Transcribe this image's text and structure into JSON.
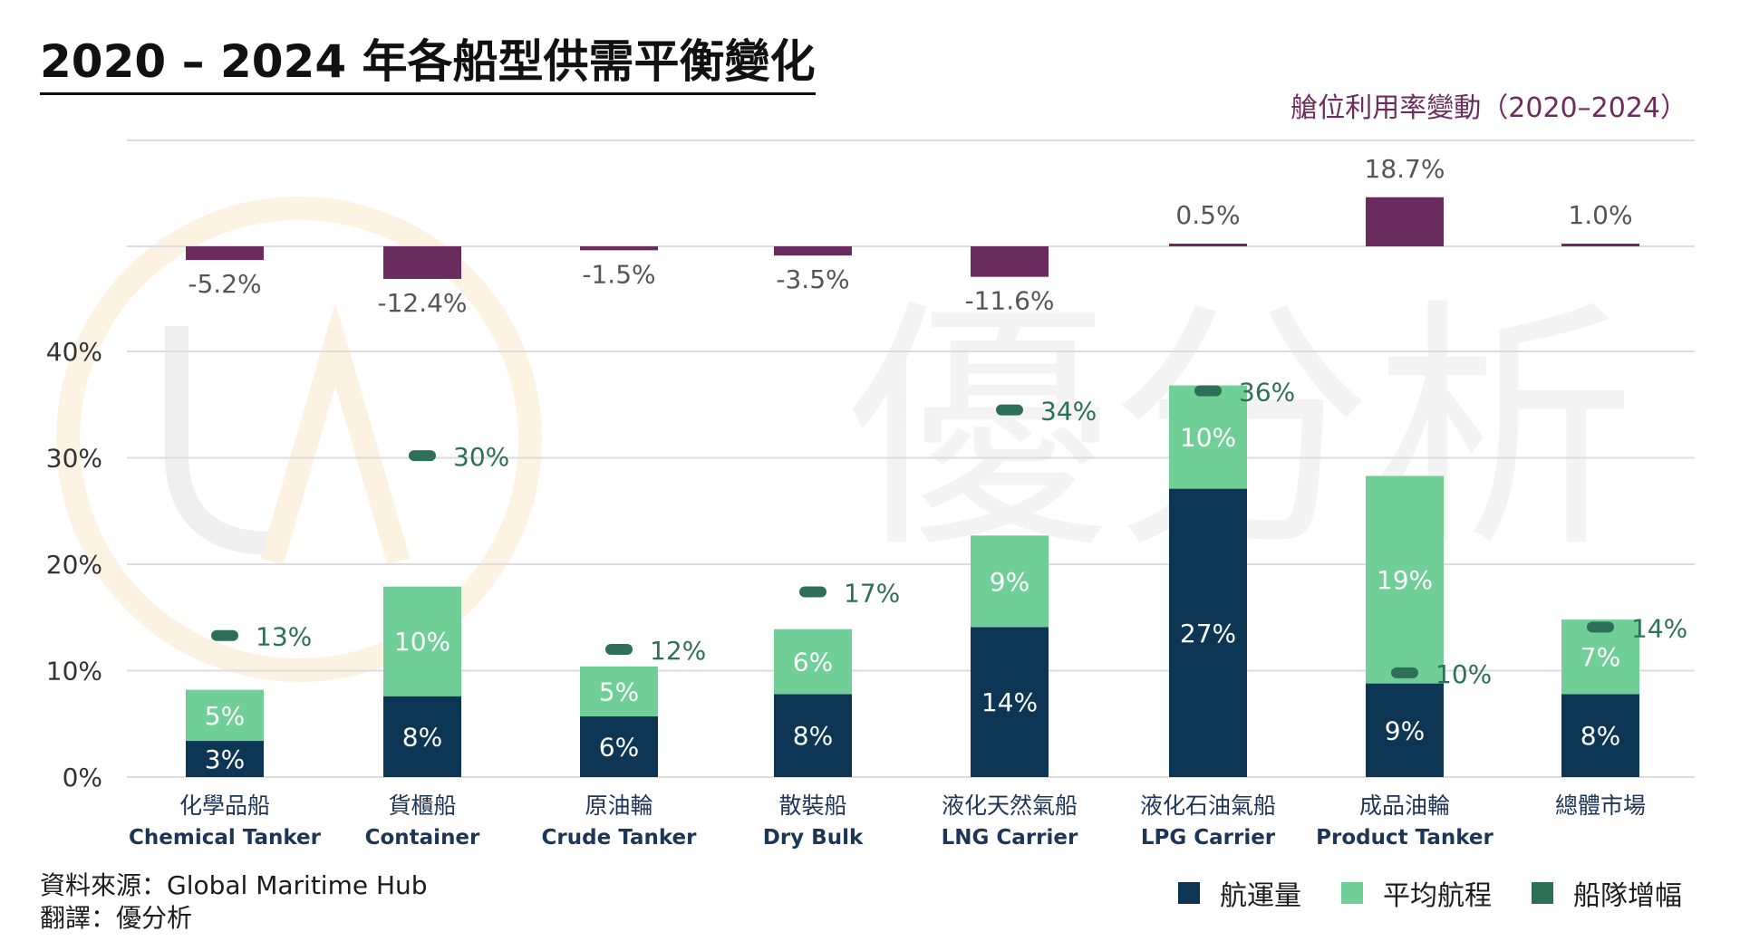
{
  "header": {
    "title": "2020 – 2024 年各船型供需平衡變化",
    "subtitle": "艙位利用率變動（2020–2024）"
  },
  "footer": {
    "source": "資料來源：Global Maritime Hub",
    "translation": "翻譯：優分析"
  },
  "watermark": {
    "text": "優分析",
    "logo": "UA"
  },
  "colors": {
    "volume": "#0c3654",
    "distance": "#6fcf97",
    "fleet": "#2e6f57",
    "utilization": "#6a2c5f",
    "grid": "#dcdcdc"
  },
  "chart_data": [
    {
      "type": "bar",
      "title": "艙位利用率變動（2020–2024）",
      "categories": [
        "化學品船 Chemical Tanker",
        "貨櫃船 Container",
        "原油輪 Crude Tanker",
        "散裝船 Dry Bulk",
        "液化天然氣船 LNG Carrier",
        "液化石油氣船 LPG Carrier",
        "成品油輪 Product Tanker",
        "總體市場"
      ],
      "values": [
        -5.2,
        -12.4,
        -1.5,
        -3.5,
        -11.6,
        0.5,
        18.7,
        1.0
      ],
      "labels": [
        "-5.2%",
        "-12.4%",
        "-1.5%",
        "-3.5%",
        "-11.6%",
        "0.5%",
        "18.7%",
        "1.0%"
      ]
    },
    {
      "type": "bar",
      "stacked": true,
      "categories": [
        {
          "zh": "化學品船",
          "en": "Chemical Tanker"
        },
        {
          "zh": "貨櫃船",
          "en": "Container"
        },
        {
          "zh": "原油輪",
          "en": "Crude Tanker"
        },
        {
          "zh": "散裝船",
          "en": "Dry Bulk"
        },
        {
          "zh": "液化天然氣船",
          "en": "LNG Carrier"
        },
        {
          "zh": "液化石油氣船",
          "en": "LPG Carrier"
        },
        {
          "zh": "成品油輪",
          "en": "Product Tanker"
        },
        {
          "zh": "總體市場",
          "en": ""
        }
      ],
      "series": [
        {
          "name": "航運量",
          "type": "bar",
          "values": [
            3.4,
            7.6,
            5.7,
            7.8,
            14.1,
            27.1,
            8.8,
            7.8
          ],
          "labels": [
            "3%",
            "8%",
            "6%",
            "8%",
            "14%",
            "27%",
            "9%",
            "8%"
          ]
        },
        {
          "name": "平均航程",
          "type": "bar",
          "values": [
            4.8,
            10.3,
            4.7,
            6.1,
            8.6,
            9.7,
            19.5,
            7.0
          ],
          "labels": [
            "5%",
            "10%",
            "5%",
            "6%",
            "9%",
            "10%",
            "19%",
            "7%"
          ]
        },
        {
          "name": "船隊增幅",
          "type": "marker",
          "values": [
            13.3,
            30.2,
            12.0,
            17.4,
            34.5,
            36.3,
            9.8,
            14.1
          ],
          "labels": [
            "13%",
            "30%",
            "12%",
            "17%",
            "34%",
            "36%",
            "10%",
            "14%"
          ]
        }
      ],
      "yticks": [
        "0%",
        "10%",
        "20%",
        "30%",
        "40%"
      ],
      "ylim": [
        0,
        40
      ],
      "grid": true,
      "legend": "bottom-right"
    }
  ]
}
